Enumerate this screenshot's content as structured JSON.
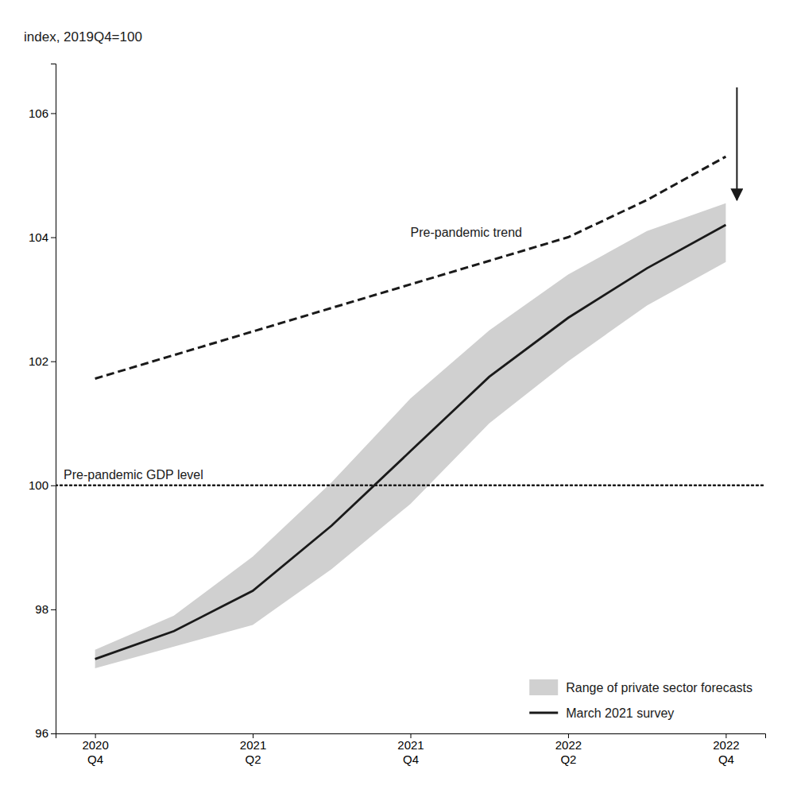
{
  "chart_data": {
    "type": "line",
    "y_label": "index, 2019Q4=100",
    "categories": [
      "2020\nQ4",
      null,
      "2021\nQ2",
      null,
      "2021\nQ4",
      null,
      "2022\nQ2",
      null,
      "2022\nQ4"
    ],
    "ylim": [
      96,
      106.8
    ],
    "yticks": [
      96,
      98,
      100,
      102,
      104,
      106
    ],
    "grid": false,
    "legend": "lower right",
    "series": [
      {
        "name": "Range of private sector forecasts",
        "type": "area",
        "color": "#d0d0d0",
        "values": [
          97.35,
          97.9,
          98.85,
          100.05,
          101.4,
          102.5,
          103.4,
          104.1,
          104.55
        ],
        "lower": [
          97.05,
          97.4,
          97.75,
          98.65,
          99.7,
          101.0,
          102.0,
          102.9,
          103.6
        ]
      },
      {
        "type": "line",
        "color": "#1a1a1a",
        "line_style": "dashed",
        "annotation": "Pre-pandemic trend",
        "values": [
          101.72,
          102.1,
          102.48,
          102.86,
          103.24,
          103.62,
          104.0,
          104.6,
          105.3
        ]
      },
      {
        "name": "March 2021 survey",
        "type": "line",
        "color": "#1a1a1a",
        "line_style": "solid",
        "values": [
          97.2,
          97.65,
          98.3,
          99.35,
          100.55,
          101.75,
          102.7,
          103.5,
          104.2
        ]
      }
    ],
    "reference_line": {
      "y": 100,
      "color": "#1a1a1a",
      "line_style": "dotted",
      "annotation": "Pre-pandemic GDP level"
    }
  }
}
